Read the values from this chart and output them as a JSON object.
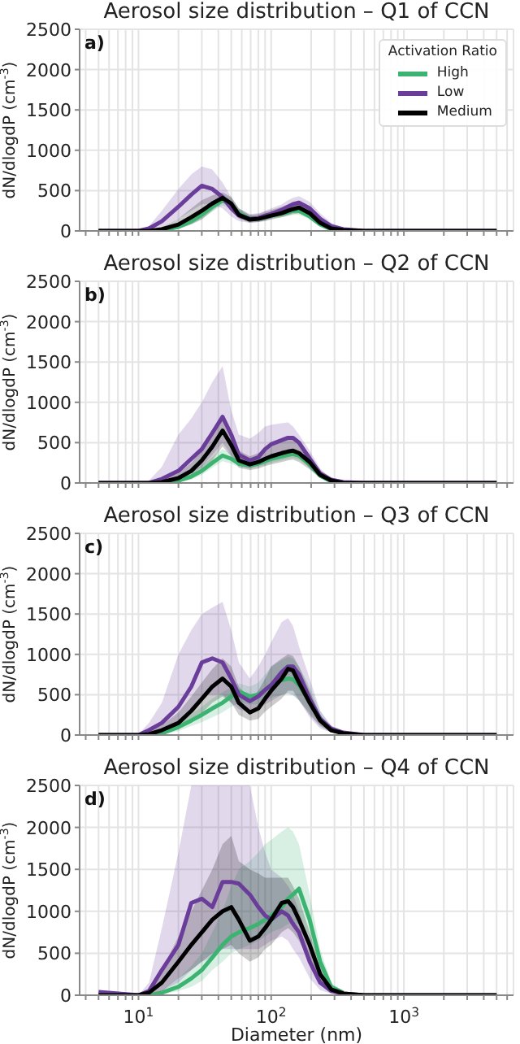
{
  "chart_data": [
    {
      "type": "line",
      "title": "Aerosol size distribution – Q1 of CCN",
      "ylabel": "dN/dlogdP (cm$^{-3}$)",
      "annotations": [
        "a)"
      ],
      "legend": "top right",
      "legend_title": "Activation Ratio",
      "tick_labels": "y",
      "log": "x",
      "grid": true,
      "marker": "none",
      "line_style": "solid",
      "xlim": [
        3.6,
        6700
      ],
      "ylim": [
        0,
        2500
      ],
      "yticks": [
        0,
        500,
        1000,
        1500,
        2000,
        2500
      ],
      "xticks": [
        {
          "value": 4,
          "label": null
        },
        {
          "value": 5,
          "label": null
        },
        {
          "value": 6,
          "label": null
        },
        {
          "value": 7,
          "label": null
        },
        {
          "value": 8,
          "label": null
        },
        {
          "value": 9,
          "label": null
        },
        {
          "value": 10,
          "label": null
        },
        {
          "value": 20,
          "label": null
        },
        {
          "value": 30,
          "label": null
        },
        {
          "value": 40,
          "label": null
        },
        {
          "value": 50,
          "label": null
        },
        {
          "value": 60,
          "label": null
        },
        {
          "value": 70,
          "label": null
        },
        {
          "value": 80,
          "label": null
        },
        {
          "value": 90,
          "label": null
        },
        {
          "value": 100,
          "label": null
        },
        {
          "value": 200,
          "label": null
        },
        {
          "value": 300,
          "label": null
        },
        {
          "value": 400,
          "label": null
        },
        {
          "value": 500,
          "label": null
        },
        {
          "value": 600,
          "label": null
        },
        {
          "value": 700,
          "label": null
        },
        {
          "value": 800,
          "label": null
        },
        {
          "value": 900,
          "label": null
        },
        {
          "value": 1000,
          "label": null
        },
        {
          "value": 2000,
          "label": null
        },
        {
          "value": 3000,
          "label": null
        },
        {
          "value": 4000,
          "label": null
        },
        {
          "value": 5000,
          "label": null
        },
        {
          "value": 6000,
          "label": null
        }
      ],
      "x": [
        5,
        10,
        12,
        15,
        20,
        25,
        30,
        36,
        43,
        50,
        57,
        69,
        80,
        90,
        100,
        120,
        134,
        146,
        162,
        195,
        234,
        283,
        350,
        500,
        1000,
        5000
      ],
      "series": [
        {
          "name": "High",
          "color": "#3cb371",
          "values": [
            null,
            null,
            0,
            10,
            50,
            120,
            200,
            300,
            380,
            330,
            220,
            150,
            150,
            170,
            190,
            210,
            230,
            250,
            250,
            180,
            80,
            20,
            0,
            null,
            null,
            null
          ],
          "upper": [
            0,
            0,
            0,
            20,
            80,
            170,
            260,
            370,
            450,
            400,
            270,
            190,
            190,
            210,
            230,
            260,
            280,
            300,
            300,
            230,
            110,
            40,
            10,
            0,
            0,
            0
          ],
          "lower": [
            0,
            0,
            0,
            0,
            20,
            80,
            150,
            240,
            320,
            270,
            170,
            110,
            110,
            130,
            150,
            170,
            190,
            200,
            200,
            140,
            50,
            10,
            0,
            0,
            0,
            0
          ]
        },
        {
          "name": "Low",
          "color": "#6a3d9a",
          "values": [
            0,
            0,
            30,
            120,
            300,
            450,
            560,
            520,
            420,
            280,
            190,
            150,
            160,
            190,
            210,
            260,
            300,
            330,
            350,
            280,
            150,
            60,
            20,
            0,
            0,
            0
          ],
          "upper": [
            0,
            0,
            60,
            250,
            520,
            700,
            800,
            760,
            600,
            420,
            280,
            210,
            220,
            250,
            280,
            330,
            380,
            410,
            430,
            360,
            220,
            100,
            40,
            10,
            0,
            0
          ],
          "lower": [
            0,
            0,
            10,
            50,
            150,
            250,
            330,
            330,
            280,
            180,
            120,
            100,
            110,
            130,
            150,
            190,
            220,
            250,
            270,
            210,
            100,
            30,
            5,
            0,
            0,
            0
          ]
        },
        {
          "name": "Medium",
          "color": "#000000",
          "values": [
            0,
            0,
            0,
            20,
            80,
            170,
            250,
            340,
            410,
            340,
            200,
            140,
            150,
            170,
            190,
            220,
            250,
            270,
            290,
            220,
            100,
            30,
            10,
            0,
            0,
            0
          ],
          "upper": [
            0,
            0,
            10,
            50,
            150,
            280,
            380,
            440,
            480,
            420,
            280,
            200,
            210,
            240,
            260,
            300,
            330,
            360,
            370,
            290,
            150,
            50,
            15,
            0,
            0,
            0
          ],
          "lower": [
            0,
            0,
            0,
            5,
            30,
            80,
            140,
            250,
            350,
            280,
            150,
            100,
            110,
            120,
            140,
            170,
            190,
            210,
            220,
            160,
            60,
            10,
            0,
            0,
            0,
            0
          ]
        }
      ]
    },
    {
      "type": "line",
      "title": "Aerosol size distribution – Q2 of CCN",
      "ylabel": "dN/dlogdP (cm$^{-3}$)",
      "annotations": [
        "b)"
      ],
      "tick_labels": "y",
      "log": "x",
      "grid": true,
      "marker": "none",
      "line_style": "solid",
      "xlim": [
        3.6,
        6700
      ],
      "ylim": [
        0,
        2500
      ],
      "yticks": [
        0,
        500,
        1000,
        1500,
        2000,
        2500
      ],
      "xticks": [
        {
          "value": 4,
          "label": null
        },
        {
          "value": 5,
          "label": null
        },
        {
          "value": 6,
          "label": null
        },
        {
          "value": 7,
          "label": null
        },
        {
          "value": 8,
          "label": null
        },
        {
          "value": 9,
          "label": null
        },
        {
          "value": 10,
          "label": null
        },
        {
          "value": 20,
          "label": null
        },
        {
          "value": 30,
          "label": null
        },
        {
          "value": 40,
          "label": null
        },
        {
          "value": 50,
          "label": null
        },
        {
          "value": 60,
          "label": null
        },
        {
          "value": 70,
          "label": null
        },
        {
          "value": 80,
          "label": null
        },
        {
          "value": 90,
          "label": null
        },
        {
          "value": 100,
          "label": null
        },
        {
          "value": 200,
          "label": null
        },
        {
          "value": 300,
          "label": null
        },
        {
          "value": 400,
          "label": null
        },
        {
          "value": 500,
          "label": null
        },
        {
          "value": 600,
          "label": null
        },
        {
          "value": 700,
          "label": null
        },
        {
          "value": 800,
          "label": null
        },
        {
          "value": 900,
          "label": null
        },
        {
          "value": 1000,
          "label": null
        },
        {
          "value": 2000,
          "label": null
        },
        {
          "value": 3000,
          "label": null
        },
        {
          "value": 4000,
          "label": null
        },
        {
          "value": 5000,
          "label": null
        },
        {
          "value": 6000,
          "label": null
        }
      ],
      "x": [
        5,
        10,
        12,
        15,
        20,
        25,
        30,
        36,
        43,
        50,
        57,
        69,
        80,
        90,
        100,
        120,
        134,
        146,
        162,
        195,
        234,
        283,
        350,
        500,
        1000,
        5000
      ],
      "series": [
        {
          "color": "#3cb371",
          "values": [
            null,
            null,
            0,
            0,
            30,
            80,
            150,
            250,
            340,
            300,
            240,
            220,
            240,
            270,
            300,
            330,
            350,
            360,
            340,
            230,
            90,
            20,
            null,
            null,
            null,
            null
          ],
          "upper": [
            0,
            0,
            0,
            15,
            60,
            130,
            210,
            320,
            420,
            370,
            290,
            270,
            290,
            320,
            350,
            380,
            400,
            410,
            390,
            280,
            120,
            30,
            10,
            0,
            0,
            0
          ],
          "lower": [
            0,
            0,
            0,
            0,
            10,
            40,
            100,
            190,
            270,
            240,
            200,
            180,
            200,
            220,
            250,
            280,
            300,
            310,
            290,
            190,
            60,
            10,
            0,
            0,
            0,
            0
          ]
        },
        {
          "color": "#6a3d9a",
          "values": [
            0,
            0,
            0,
            50,
            150,
            300,
            420,
            620,
            820,
            600,
            350,
            280,
            320,
            420,
            480,
            530,
            560,
            560,
            500,
            300,
            120,
            40,
            10,
            0,
            0,
            0
          ],
          "upper": [
            0,
            0,
            30,
            200,
            600,
            800,
            1000,
            1250,
            1450,
            900,
            600,
            550,
            620,
            700,
            720,
            740,
            750,
            700,
            600,
            400,
            180,
            60,
            15,
            0,
            0,
            0
          ],
          "lower": [
            0,
            0,
            0,
            10,
            50,
            120,
            200,
            350,
            500,
            350,
            220,
            180,
            220,
            290,
            340,
            380,
            400,
            390,
            330,
            180,
            60,
            15,
            0,
            0,
            0,
            0
          ]
        },
        {
          "color": "#000000",
          "values": [
            0,
            0,
            0,
            10,
            60,
            150,
            280,
            450,
            650,
            470,
            280,
            230,
            260,
            300,
            330,
            370,
            390,
            400,
            370,
            260,
            100,
            30,
            0,
            0,
            0,
            0
          ],
          "upper": [
            0,
            0,
            5,
            30,
            120,
            250,
            420,
            620,
            850,
            650,
            400,
            330,
            370,
            430,
            470,
            520,
            540,
            540,
            500,
            360,
            150,
            40,
            10,
            0,
            0,
            0
          ],
          "lower": [
            0,
            0,
            0,
            0,
            20,
            70,
            150,
            280,
            450,
            330,
            190,
            160,
            180,
            210,
            230,
            260,
            280,
            290,
            260,
            170,
            60,
            10,
            0,
            0,
            0,
            0
          ]
        }
      ]
    },
    {
      "type": "line",
      "title": "Aerosol size distribution – Q3 of CCN",
      "ylabel": "dN/dlogdP (cm$^{-3}$)",
      "annotations": [
        "c)"
      ],
      "tick_labels": "y",
      "log": "x",
      "grid": true,
      "marker": "none",
      "line_style": "solid",
      "xlim": [
        3.6,
        6700
      ],
      "ylim": [
        0,
        2500
      ],
      "yticks": [
        0,
        500,
        1000,
        1500,
        2000,
        2500
      ],
      "xticks": [
        {
          "value": 4,
          "label": null
        },
        {
          "value": 5,
          "label": null
        },
        {
          "value": 6,
          "label": null
        },
        {
          "value": 7,
          "label": null
        },
        {
          "value": 8,
          "label": null
        },
        {
          "value": 9,
          "label": null
        },
        {
          "value": 10,
          "label": null
        },
        {
          "value": 20,
          "label": null
        },
        {
          "value": 30,
          "label": null
        },
        {
          "value": 40,
          "label": null
        },
        {
          "value": 50,
          "label": null
        },
        {
          "value": 60,
          "label": null
        },
        {
          "value": 70,
          "label": null
        },
        {
          "value": 80,
          "label": null
        },
        {
          "value": 90,
          "label": null
        },
        {
          "value": 100,
          "label": null
        },
        {
          "value": 200,
          "label": null
        },
        {
          "value": 300,
          "label": null
        },
        {
          "value": 400,
          "label": null
        },
        {
          "value": 500,
          "label": null
        },
        {
          "value": 600,
          "label": null
        },
        {
          "value": 700,
          "label": null
        },
        {
          "value": 800,
          "label": null
        },
        {
          "value": 900,
          "label": null
        },
        {
          "value": 1000,
          "label": null
        },
        {
          "value": 2000,
          "label": null
        },
        {
          "value": 3000,
          "label": null
        },
        {
          "value": 4000,
          "label": null
        },
        {
          "value": 5000,
          "label": null
        },
        {
          "value": 6000,
          "label": null
        }
      ],
      "x": [
        5,
        10,
        12,
        15,
        20,
        25,
        30,
        36,
        43,
        50,
        57,
        69,
        80,
        90,
        100,
        120,
        134,
        146,
        162,
        195,
        234,
        283,
        350,
        500,
        1000,
        5000
      ],
      "series": [
        {
          "color": "#3cb371",
          "values": [
            null,
            null,
            0,
            20,
            100,
            180,
            250,
            330,
            400,
            480,
            540,
            480,
            500,
            560,
            620,
            680,
            700,
            690,
            620,
            420,
            200,
            null,
            null,
            null,
            null,
            null
          ],
          "upper": [
            0,
            0,
            0,
            40,
            160,
            260,
            350,
            450,
            530,
            600,
            640,
            600,
            650,
            750,
            850,
            930,
            970,
            950,
            850,
            600,
            300,
            100,
            30,
            10,
            0,
            0
          ],
          "lower": [
            0,
            0,
            0,
            5,
            50,
            110,
            160,
            220,
            280,
            350,
            400,
            380,
            380,
            420,
            460,
            500,
            510,
            490,
            430,
            280,
            120,
            40,
            10,
            0,
            0,
            0
          ]
        },
        {
          "color": "#6a3d9a",
          "values": [
            0,
            0,
            60,
            150,
            350,
            600,
            900,
            950,
            900,
            700,
            500,
            420,
            480,
            560,
            620,
            780,
            850,
            850,
            750,
            450,
            200,
            80,
            30,
            0,
            0,
            0
          ],
          "upper": [
            0,
            10,
            150,
            400,
            1000,
            1300,
            1500,
            1580,
            1650,
            1300,
            900,
            700,
            850,
            1000,
            1150,
            1400,
            1450,
            1350,
            1100,
            700,
            300,
            120,
            40,
            10,
            0,
            0
          ],
          "lower": [
            0,
            0,
            20,
            60,
            150,
            300,
            500,
            500,
            500,
            400,
            320,
            280,
            320,
            380,
            420,
            500,
            520,
            500,
            430,
            220,
            80,
            30,
            10,
            0,
            0,
            0
          ]
        },
        {
          "color": "#000000",
          "values": [
            0,
            0,
            10,
            60,
            150,
            300,
            450,
            600,
            700,
            600,
            400,
            280,
            330,
            450,
            550,
            700,
            820,
            800,
            650,
            400,
            180,
            60,
            20,
            0,
            0,
            0
          ],
          "upper": [
            0,
            0,
            30,
            120,
            280,
            480,
            650,
            820,
            950,
            850,
            600,
            450,
            550,
            700,
            850,
            950,
            1000,
            980,
            850,
            550,
            250,
            90,
            30,
            10,
            0,
            0
          ],
          "lower": [
            0,
            0,
            0,
            20,
            70,
            150,
            270,
            400,
            480,
            400,
            250,
            180,
            200,
            290,
            350,
            450,
            550,
            550,
            430,
            250,
            110,
            30,
            10,
            0,
            0,
            0
          ]
        }
      ]
    },
    {
      "type": "line",
      "title": "Aerosol size distribution – Q4 of CCN",
      "xlabel": "Diameter (nm)",
      "ylabel": "dN/dlogdP (cm$^{-3}$)",
      "annotations": [
        "d)"
      ],
      "log": "x",
      "grid": true,
      "marker": "none",
      "line_style": "solid",
      "xlim": [
        3.6,
        6700
      ],
      "ylim": [
        0,
        2500
      ],
      "yticks": [
        0,
        500,
        1000,
        1500,
        2000,
        2500
      ],
      "xticks": [
        {
          "value": 4,
          "label": null
        },
        {
          "value": 5,
          "label": null
        },
        {
          "value": 6,
          "label": null
        },
        {
          "value": 7,
          "label": null
        },
        {
          "value": 8,
          "label": null
        },
        {
          "value": 9,
          "label": null
        },
        {
          "value": 10,
          "label": "10$^{1}$"
        },
        {
          "value": 20,
          "label": null
        },
        {
          "value": 30,
          "label": null
        },
        {
          "value": 40,
          "label": null
        },
        {
          "value": 50,
          "label": null
        },
        {
          "value": 60,
          "label": null
        },
        {
          "value": 70,
          "label": null
        },
        {
          "value": 80,
          "label": null
        },
        {
          "value": 90,
          "label": null
        },
        {
          "value": 100,
          "label": "10$^{2}$"
        },
        {
          "value": 200,
          "label": null
        },
        {
          "value": 300,
          "label": null
        },
        {
          "value": 400,
          "label": null
        },
        {
          "value": 500,
          "label": null
        },
        {
          "value": 600,
          "label": null
        },
        {
          "value": 700,
          "label": null
        },
        {
          "value": 800,
          "label": null
        },
        {
          "value": 900,
          "label": null
        },
        {
          "value": 1000,
          "label": "10$^{3}$"
        },
        {
          "value": 2000,
          "label": null
        },
        {
          "value": 3000,
          "label": null
        },
        {
          "value": 4000,
          "label": null
        },
        {
          "value": 5000,
          "label": null
        },
        {
          "value": 6000,
          "label": null
        }
      ],
      "x": [
        5,
        10,
        12,
        15,
        20,
        25,
        30,
        36,
        43,
        50,
        57,
        69,
        80,
        90,
        100,
        120,
        134,
        146,
        162,
        195,
        234,
        283,
        350,
        500,
        1000,
        5000
      ],
      "series": [
        {
          "color": "#3cb371",
          "values": [
            null,
            null,
            0,
            30,
            100,
            200,
            300,
            450,
            600,
            700,
            750,
            800,
            850,
            900,
            950,
            1050,
            1150,
            1200,
            1270,
            900,
            400,
            100,
            30,
            null,
            null,
            null
          ],
          "upper": [
            0,
            0,
            0,
            60,
            200,
            350,
            500,
            750,
            1000,
            1300,
            1500,
            1600,
            1700,
            1800,
            1850,
            1950,
            2000,
            1950,
            1800,
            1200,
            550,
            150,
            40,
            10,
            0,
            0
          ],
          "lower": [
            0,
            0,
            0,
            10,
            50,
            100,
            170,
            300,
            400,
            500,
            550,
            600,
            650,
            700,
            750,
            800,
            850,
            850,
            850,
            600,
            250,
            60,
            20,
            5,
            0,
            0
          ]
        },
        {
          "color": "#6a3d9a",
          "values": [
            40,
            0,
            50,
            300,
            600,
            1100,
            1150,
            1050,
            1350,
            1350,
            1330,
            1200,
            1050,
            950,
            900,
            1000,
            950,
            850,
            750,
            400,
            150,
            50,
            20,
            0,
            0,
            0
          ],
          "upper": [
            40,
            0,
            150,
            800,
            1700,
            2500,
            2500,
            2500,
            2500,
            2500,
            2500,
            2500,
            2000,
            1700,
            1500,
            1400,
            1300,
            1200,
            1000,
            600,
            250,
            80,
            30,
            10,
            0,
            0
          ],
          "lower": [
            40,
            0,
            10,
            50,
            150,
            300,
            400,
            450,
            550,
            550,
            550,
            550,
            550,
            600,
            650,
            700,
            650,
            550,
            450,
            200,
            60,
            20,
            5,
            0,
            0,
            0
          ]
        },
        {
          "color": "#000000",
          "values": [
            0,
            0,
            30,
            150,
            400,
            600,
            750,
            900,
            1000,
            1050,
            900,
            650,
            700,
            800,
            900,
            1100,
            1120,
            1050,
            900,
            600,
            250,
            70,
            20,
            0,
            0,
            0
          ],
          "upper": [
            0,
            0,
            80,
            300,
            700,
            1000,
            1250,
            1500,
            1800,
            1900,
            1600,
            1500,
            1450,
            1400,
            1400,
            1400,
            1400,
            1300,
            1150,
            750,
            350,
            100,
            30,
            10,
            0,
            0
          ],
          "lower": [
            0,
            0,
            5,
            50,
            200,
            300,
            400,
            500,
            550,
            600,
            500,
            400,
            450,
            550,
            600,
            750,
            800,
            750,
            650,
            400,
            150,
            40,
            10,
            0,
            0,
            0
          ]
        }
      ]
    }
  ]
}
